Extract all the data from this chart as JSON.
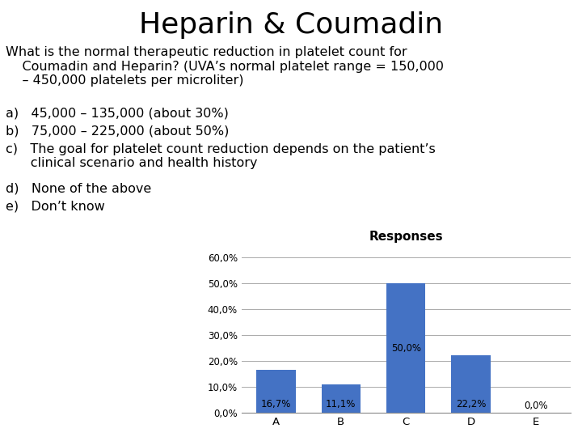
{
  "title": "Heparin & Coumadin",
  "q_line1": "What is the normal therapeutic reduction in platelet count for",
  "q_line2": "    Coumadin and Heparin? (UVA’s normal platelet range = 150,000",
  "q_line3": "    – 450,000 platelets per microliter)",
  "opt_a": "a)   45,000 – 135,000 (about 30%)",
  "opt_b": "b)   75,000 – 225,000 (about 50%)",
  "opt_c1": "c)   The goal for platelet count reduction depends on the patient’s",
  "opt_c2": "      clinical scenario and health history",
  "opt_d": "d)   None of the above",
  "opt_e": "e)   Don’t know",
  "chart_title": "Responses",
  "categories": [
    "A",
    "B",
    "C",
    "D",
    "E"
  ],
  "values": [
    16.7,
    11.1,
    50.0,
    22.2,
    0.0
  ],
  "bar_color": "#4472C4",
  "ylim": [
    0,
    65
  ],
  "yticks": [
    0,
    10,
    20,
    30,
    40,
    50,
    60
  ],
  "ytick_labels": [
    "0,0%",
    "10,0%",
    "20,0%",
    "30,0%",
    "40,0%",
    "50,0%",
    "60,0%"
  ],
  "data_labels": [
    "16,7%",
    "11,1%",
    "50,0%",
    "22,2%",
    "0,0%"
  ],
  "label_y_inside": [
    1.2,
    1.2,
    1.2,
    1.2,
    1.2
  ],
  "background_color": "#ffffff",
  "title_fontsize": 26,
  "question_fontsize": 11.5,
  "option_fontsize": 11.5,
  "chart_title_fontsize": 11,
  "bar_label_fontsize": 8.5
}
